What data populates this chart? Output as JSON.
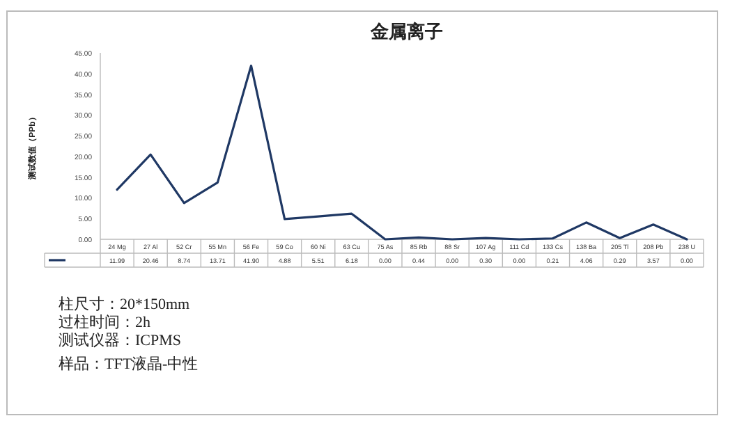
{
  "chart_data": {
    "type": "line",
    "title": "金属离子",
    "ylabel": "测试数值（PPb）",
    "categories": [
      "24 Mg",
      "27 Al",
      "52 Cr",
      "55 Mn",
      "56 Fe",
      "59 Co",
      "60 Ni",
      "63 Cu",
      "75 As",
      "85 Rb",
      "88 Sr",
      "107 Ag",
      "111 Cd",
      "133 Cs",
      "138 Ba",
      "205 Tl",
      "208 Pb",
      "238 U"
    ],
    "series": [
      {
        "color": "#1f3864",
        "values": [
          11.99,
          20.46,
          8.74,
          13.71,
          41.9,
          4.88,
          5.51,
          6.18,
          0.0,
          0.44,
          0.0,
          0.3,
          0.0,
          0.21,
          4.06,
          0.29,
          3.57,
          0.0
        ],
        "value_labels": [
          "11.99",
          "20.46",
          "8.74",
          "13.71",
          "41.90",
          "4.88",
          "5.51",
          "6.18",
          "0.00",
          "0.44",
          "0.00",
          "0.30",
          "0.00",
          "0.21",
          "4.06",
          "0.29",
          "3.57",
          "0.00"
        ]
      }
    ],
    "ylim": [
      0,
      45
    ],
    "yticks": [
      {
        "value": 0,
        "label": "0.00"
      },
      {
        "value": 5,
        "label": "5.00"
      },
      {
        "value": 10,
        "label": "10.00"
      },
      {
        "value": 15,
        "label": "15.00"
      },
      {
        "value": 20,
        "label": "20.00"
      },
      {
        "value": 25,
        "label": "25.00"
      },
      {
        "value": 30,
        "label": "30.00"
      },
      {
        "value": 35,
        "label": "35.00"
      },
      {
        "value": 40,
        "label": "40.00"
      },
      {
        "value": 45,
        "label": "45.00"
      }
    ],
    "grid": false,
    "marker": "none",
    "line_style": "solid",
    "annotations": [
      "柱尺寸：20*150mm",
      "过柱时间：2h",
      "测试仪器：ICPMS",
      "样品：TFT液晶-中性"
    ]
  }
}
